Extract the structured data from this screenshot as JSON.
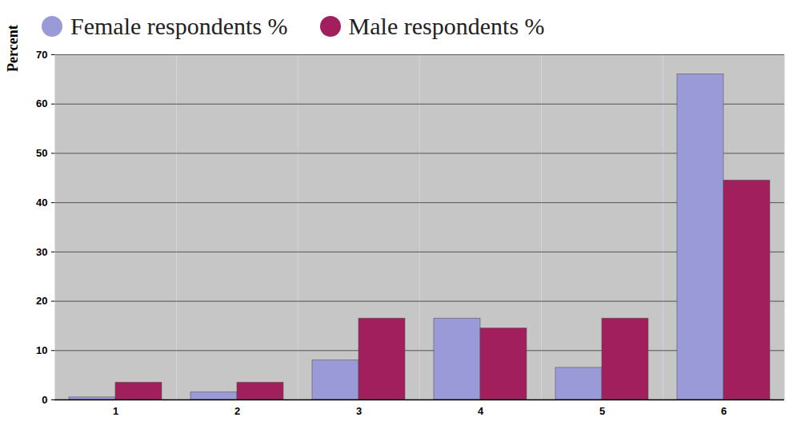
{
  "chart_data": {
    "type": "bar",
    "y_label": "Percent",
    "categories": [
      "1",
      "2",
      "3",
      "4",
      "5",
      "6"
    ],
    "series": [
      {
        "name": "Female respondents %",
        "color": "#9a9ad8",
        "values": [
          0.5,
          1.5,
          8,
          16.5,
          6.5,
          66
        ]
      },
      {
        "name": "Male respondents %",
        "color": "#a01f5c",
        "values": [
          3.5,
          3.5,
          16.5,
          14.5,
          16.5,
          44.5
        ]
      }
    ],
    "ylim": [
      0,
      70
    ],
    "yticks": [
      0,
      10,
      20,
      30,
      40,
      50,
      60,
      70
    ],
    "grid": true,
    "legend": "top"
  }
}
